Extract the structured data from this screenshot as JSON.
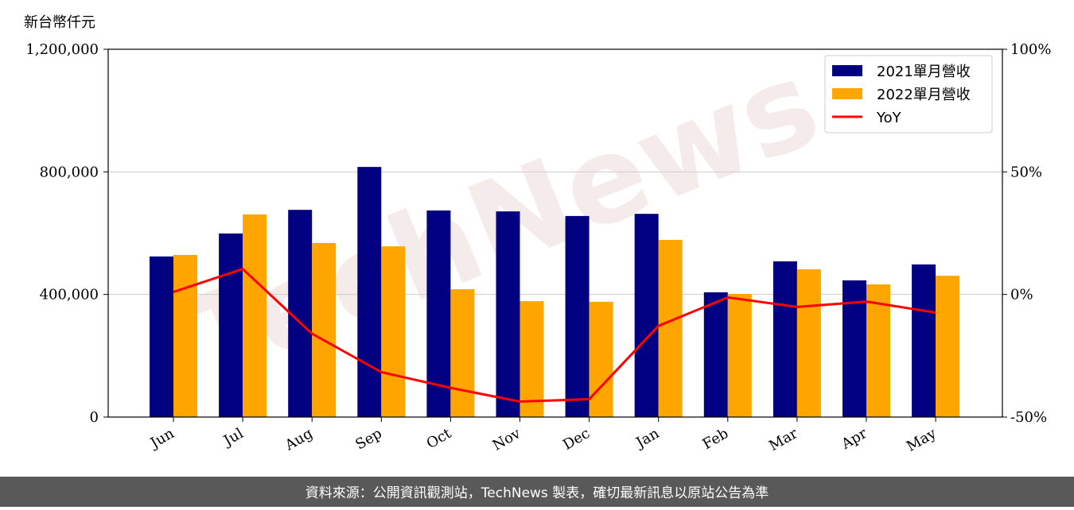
{
  "chart_data": {
    "type": "bar-line",
    "y_label": "新台幣仟元",
    "watermark": "TechNews",
    "footer": "資料來源：公開資訊觀測站，TechNews 製表，確切最新訊息以原站公告為準",
    "categories": [
      "Jun",
      "Jul",
      "Aug",
      "Sep",
      "Oct",
      "Nov",
      "Dec",
      "Jan",
      "Feb",
      "Mar",
      "Apr",
      "May"
    ],
    "series": [
      {
        "name": "2021單月營收",
        "color": "#000080",
        "values": [
          524000,
          599000,
          676000,
          816000,
          674000,
          671000,
          656000,
          663000,
          407000,
          508000,
          446000,
          498000
        ]
      },
      {
        "name": "2022單月營收",
        "color": "#ffa500",
        "values": [
          529000,
          661000,
          568000,
          557000,
          417000,
          378000,
          376000,
          578000,
          402000,
          482000,
          433000,
          461000
        ]
      },
      {
        "name": "YoY",
        "color": "#ff0000",
        "axis": "y2",
        "type": "line",
        "values": [
          1.0,
          10.4,
          -16.0,
          -31.7,
          -38.1,
          -43.7,
          -42.7,
          -12.8,
          -1.2,
          -5.1,
          -2.9,
          -7.4
        ]
      }
    ],
    "ylim": [
      0,
      1200000
    ],
    "yticks": [
      0,
      {
        "value": 400000,
        "label": "400,000"
      },
      {
        "value": 800000,
        "label": "800,000"
      },
      {
        "value": 1200000,
        "label": "1,200,000"
      }
    ],
    "y2lim": [
      -50,
      100
    ],
    "y2ticks": [
      {
        "value": -50,
        "label": "-50%"
      },
      {
        "value": 0,
        "label": "0%"
      },
      {
        "value": 50,
        "label": "50%"
      },
      {
        "value": 100,
        "label": "100%"
      }
    ],
    "grid": true,
    "legend": "upper right"
  }
}
